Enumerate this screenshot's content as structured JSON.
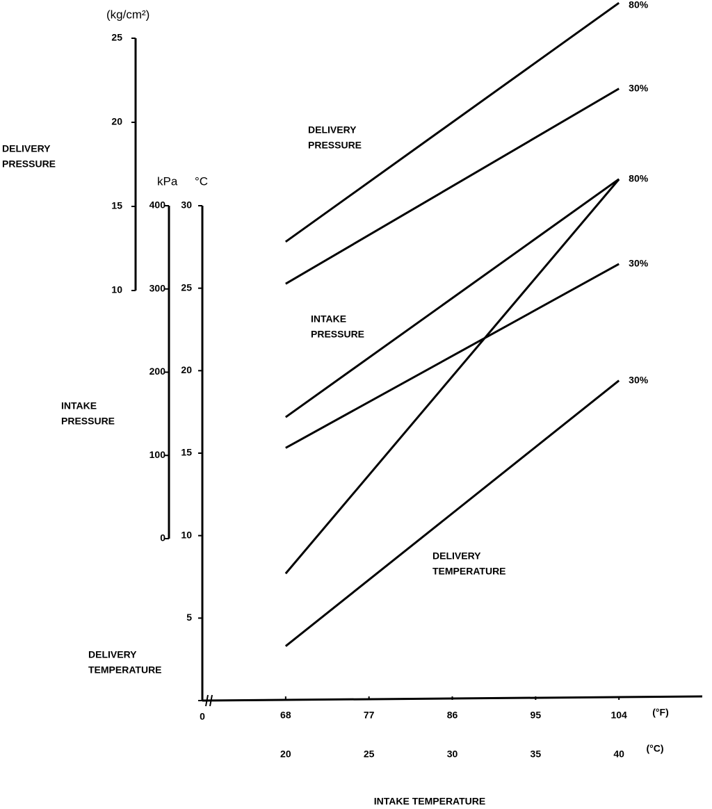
{
  "chart_data": {
    "type": "line",
    "xlabel": "INTAKE TEMPERATURE",
    "x": [
      20,
      40
    ],
    "xlim": [
      15,
      45
    ],
    "xticks": [
      20,
      25,
      30,
      35,
      40
    ],
    "xunit": "(°C)",
    "x2lim": [
      59,
      113
    ],
    "x2ticks": [
      68,
      77,
      86,
      95,
      104
    ],
    "x2unit": "(°F)",
    "axes": [
      {
        "label": [
          "DELIVERY",
          "PRESSURE"
        ],
        "unit": "(kg/cm²)",
        "ylim": [
          10,
          25
        ],
        "yticks": [
          10,
          15,
          20,
          25
        ]
      },
      {
        "label": [
          "INTAKE",
          "PRESSURE"
        ],
        "unit": "kPa",
        "ylim": [
          0,
          400
        ],
        "yticks": [
          0,
          100,
          200,
          300,
          400
        ]
      },
      {
        "label": [
          "DELIVERY",
          "TEMPERATURE"
        ],
        "unit": "°C",
        "ylim": [
          0,
          30
        ],
        "yticks": [
          0,
          5,
          10,
          15,
          20,
          25,
          30
        ]
      }
    ],
    "annotations": [
      [
        "DELIVERY",
        "PRESSURE"
      ],
      [
        "INTAKE",
        "PRESSURE"
      ],
      [
        "DELIVERY",
        "TEMPERATURE"
      ]
    ],
    "series": [
      {
        "name": "80%",
        "axis": 0,
        "color": "#000000",
        "values": [
          12.9,
          27.1
        ]
      },
      {
        "name": "30%",
        "axis": 0,
        "color": "#000000",
        "values": [
          10.4,
          22.0
        ]
      },
      {
        "name": "80%",
        "axis": 1,
        "color": "#000000",
        "values": [
          146,
          432
        ]
      },
      {
        "name": "30%",
        "axis": 1,
        "color": "#000000",
        "values": [
          109,
          330
        ]
      },
      {
        "axis": 2,
        "color": "#000000",
        "values": [
          7.7,
          31.6
        ]
      },
      {
        "name": "30%",
        "axis": 2,
        "color": "#000000",
        "values": [
          3.3,
          19.4
        ]
      }
    ]
  }
}
